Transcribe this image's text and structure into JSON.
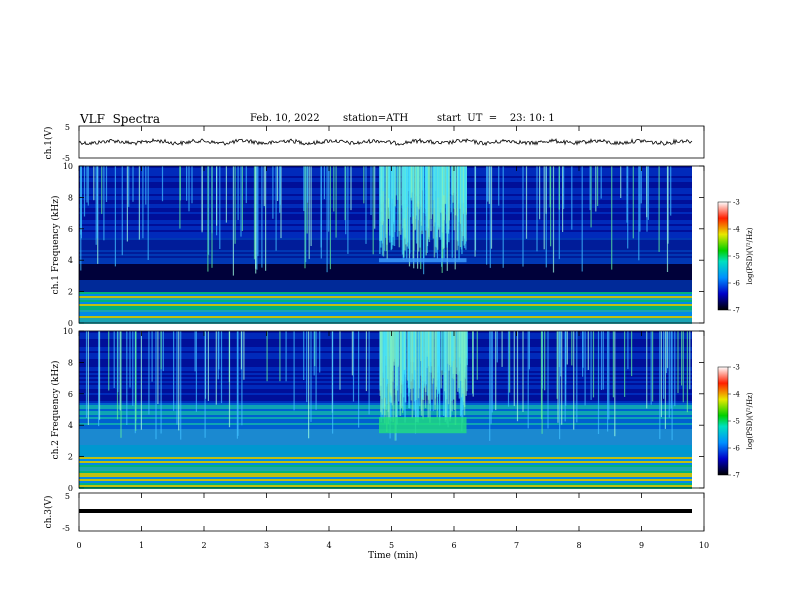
{
  "header": {
    "title": "VLF  Spectra",
    "date": "Feb. 10, 2022",
    "station": "station=ATH",
    "start": "start  UT  =    23: 10: 1"
  },
  "chart_data": [
    {
      "type": "line",
      "ylabel": "ch.1(V)",
      "ylim": [
        -5,
        5
      ],
      "yticks": [
        "5",
        "-5"
      ],
      "xlim": [
        0,
        10
      ],
      "description_values": "waveform near 0 V with small noise"
    },
    {
      "type": "heatmap",
      "ylabel": "ch.1  Frequency  (kHz)",
      "ylim": [
        0,
        10
      ],
      "yticks": [
        "0",
        "2",
        "4",
        "6",
        "8",
        "10"
      ],
      "xlim": [
        0,
        10
      ],
      "colorbar": {
        "label": "log(PSD)(V²/Hz)",
        "ticks": [
          "-3",
          "-4",
          "-5",
          "-6",
          "-7"
        ],
        "range": [
          -7,
          -3
        ]
      }
    },
    {
      "type": "heatmap",
      "ylabel": "ch.2  Frequency  (kHz)",
      "ylim": [
        0,
        10
      ],
      "yticks": [
        "0",
        "2",
        "4",
        "6",
        "8",
        "10"
      ],
      "xlim": [
        0,
        10
      ],
      "colorbar": {
        "label": "log(PSD)(V²/Hz)",
        "ticks": [
          "-3",
          "-4",
          "-5",
          "-6",
          "-7"
        ],
        "range": [
          -7,
          -3
        ]
      }
    },
    {
      "type": "line",
      "ylabel": "ch.3(V)",
      "ylim": [
        -5,
        5
      ],
      "yticks": [
        "5",
        "-5"
      ],
      "xlim": [
        0,
        10
      ],
      "xlabel": "Time  (min)",
      "xticks": [
        "0",
        "1",
        "2",
        "3",
        "4",
        "5",
        "6",
        "7",
        "8",
        "9",
        "10"
      ]
    }
  ]
}
